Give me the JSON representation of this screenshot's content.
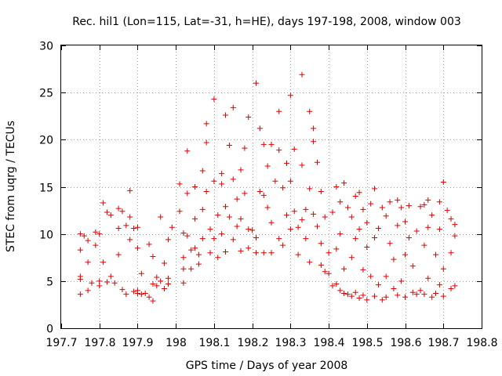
{
  "chart_data": {
    "type": "scatter",
    "title": "Rec. hil1 (Lon=115, Lat=-31, h=HE), days 197-198, 2008, window 003",
    "xlabel": "GPS time / Days of year 2008",
    "ylabel": "STEC from uqrg / TECUs",
    "xlim": [
      197.7,
      198.8
    ],
    "ylim": [
      0,
      30
    ],
    "xticks": [
      197.7,
      197.8,
      197.9,
      198.0,
      198.1,
      198.2,
      198.3,
      198.4,
      198.5,
      198.6,
      198.7,
      198.8
    ],
    "xtick_labels": [
      "197.7",
      "197.8",
      "197.9",
      "198",
      "198.1",
      "198.2",
      "198.3",
      "198.4",
      "198.5",
      "198.6",
      "198.7",
      "198.8"
    ],
    "yticks": [
      0,
      5,
      10,
      15,
      20,
      25,
      30
    ],
    "ytick_labels": [
      "0",
      "5",
      "10",
      "15",
      "20",
      "25",
      "30"
    ],
    "grid": true,
    "marker": "plus",
    "color": "#e00000",
    "series": [
      {
        "points": [
          [
            197.75,
            10.0
          ],
          [
            197.76,
            9.8
          ],
          [
            197.75,
            8.3
          ],
          [
            197.77,
            7.0
          ],
          [
            197.75,
            5.5
          ],
          [
            197.75,
            5.2
          ],
          [
            197.75,
            3.6
          ],
          [
            197.77,
            4.0
          ],
          [
            197.78,
            4.8
          ],
          [
            197.77,
            9.3
          ],
          [
            197.79,
            10.2
          ],
          [
            197.79,
            8.8
          ],
          [
            197.8,
            10.0
          ],
          [
            197.81,
            13.3
          ],
          [
            197.82,
            12.3
          ],
          [
            197.8,
            4.5
          ],
          [
            197.8,
            5.0
          ],
          [
            197.81,
            7.0
          ],
          [
            197.82,
            4.9
          ],
          [
            197.83,
            12.0
          ],
          [
            197.83,
            5.5
          ],
          [
            197.84,
            4.8
          ],
          [
            197.85,
            12.7
          ],
          [
            197.85,
            10.6
          ],
          [
            197.86,
            12.4
          ],
          [
            197.85,
            7.8
          ],
          [
            197.86,
            4.1
          ],
          [
            197.87,
            3.6
          ],
          [
            197.87,
            10.9
          ],
          [
            197.88,
            14.6
          ],
          [
            197.88,
            11.8
          ],
          [
            197.88,
            9.4
          ],
          [
            197.89,
            10.6
          ],
          [
            197.89,
            3.9
          ],
          [
            197.9,
            4.0
          ],
          [
            197.9,
            3.7
          ],
          [
            197.9,
            8.5
          ],
          [
            197.9,
            10.7
          ],
          [
            197.91,
            3.6
          ],
          [
            197.92,
            3.7
          ],
          [
            197.91,
            5.8
          ],
          [
            197.93,
            3.3
          ],
          [
            197.93,
            8.9
          ],
          [
            197.94,
            2.9
          ],
          [
            197.94,
            7.6
          ],
          [
            197.94,
            4.7
          ],
          [
            197.95,
            5.4
          ],
          [
            197.95,
            4.5
          ],
          [
            197.96,
            11.8
          ],
          [
            197.96,
            5.0
          ],
          [
            197.97,
            4.2
          ],
          [
            197.97,
            6.9
          ],
          [
            197.98,
            9.4
          ],
          [
            197.98,
            5.3
          ],
          [
            197.98,
            4.7
          ],
          [
            197.99,
            10.7
          ],
          [
            198.01,
            15.3
          ],
          [
            198.01,
            12.4
          ],
          [
            198.02,
            10.1
          ],
          [
            198.02,
            7.5
          ],
          [
            198.02,
            6.3
          ],
          [
            198.02,
            4.8
          ],
          [
            198.03,
            18.8
          ],
          [
            198.03,
            14.3
          ],
          [
            198.03,
            9.8
          ],
          [
            198.04,
            8.3
          ],
          [
            198.04,
            6.3
          ],
          [
            198.05,
            15.0
          ],
          [
            198.05,
            11.6
          ],
          [
            198.05,
            8.5
          ],
          [
            198.06,
            7.8
          ],
          [
            198.06,
            6.8
          ],
          [
            198.07,
            16.7
          ],
          [
            198.07,
            12.6
          ],
          [
            198.07,
            9.5
          ],
          [
            198.08,
            21.7
          ],
          [
            198.08,
            19.7
          ],
          [
            198.08,
            14.5
          ],
          [
            198.09,
            10.5
          ],
          [
            198.09,
            8.0
          ],
          [
            198.1,
            24.3
          ],
          [
            198.1,
            15.6
          ],
          [
            198.1,
            9.5
          ],
          [
            198.11,
            7.5
          ],
          [
            198.11,
            12.0
          ],
          [
            198.12,
            16.4
          ],
          [
            198.12,
            15.3
          ],
          [
            198.12,
            10.0
          ],
          [
            198.13,
            22.6
          ],
          [
            198.13,
            12.9
          ],
          [
            198.13,
            8.1
          ],
          [
            198.14,
            19.4
          ],
          [
            198.14,
            11.8
          ],
          [
            198.15,
            23.4
          ],
          [
            198.15,
            15.8
          ],
          [
            198.15,
            9.4
          ],
          [
            198.16,
            13.7
          ],
          [
            198.16,
            10.8
          ],
          [
            198.17,
            16.8
          ],
          [
            198.17,
            11.6
          ],
          [
            198.17,
            8.2
          ],
          [
            198.18,
            19.1
          ],
          [
            198.18,
            14.3
          ],
          [
            198.19,
            22.4
          ],
          [
            198.19,
            10.5
          ],
          [
            198.19,
            8.5
          ],
          [
            198.2,
            10.4
          ],
          [
            198.21,
            26.0
          ],
          [
            198.21,
            9.6
          ],
          [
            198.21,
            8.0
          ],
          [
            198.22,
            21.2
          ],
          [
            198.22,
            14.5
          ],
          [
            198.23,
            19.5
          ],
          [
            198.23,
            14.1
          ],
          [
            198.23,
            8.0
          ],
          [
            198.24,
            17.2
          ],
          [
            198.24,
            12.8
          ],
          [
            198.25,
            19.5
          ],
          [
            198.25,
            11.2
          ],
          [
            198.25,
            8.0
          ],
          [
            198.26,
            15.6
          ],
          [
            198.27,
            23.0
          ],
          [
            198.27,
            18.9
          ],
          [
            198.27,
            9.5
          ],
          [
            198.28,
            14.9
          ],
          [
            198.28,
            8.8
          ],
          [
            198.29,
            17.5
          ],
          [
            198.29,
            12.0
          ],
          [
            198.3,
            24.7
          ],
          [
            198.3,
            15.6
          ],
          [
            198.3,
            10.5
          ],
          [
            198.31,
            19.0
          ],
          [
            198.31,
            12.4
          ],
          [
            198.32,
            7.8
          ],
          [
            198.32,
            10.7
          ],
          [
            198.33,
            26.9
          ],
          [
            198.33,
            17.3
          ],
          [
            198.33,
            11.5
          ],
          [
            198.34,
            12.6
          ],
          [
            198.34,
            9.5
          ],
          [
            198.35,
            23.0
          ],
          [
            198.35,
            14.8
          ],
          [
            198.35,
            7.0
          ],
          [
            198.36,
            21.2
          ],
          [
            198.36,
            19.8
          ],
          [
            198.36,
            12.1
          ],
          [
            198.37,
            17.6
          ],
          [
            198.37,
            10.8
          ],
          [
            198.38,
            14.5
          ],
          [
            198.38,
            9.0
          ],
          [
            198.38,
            6.7
          ],
          [
            198.39,
            11.8
          ],
          [
            198.39,
            6.0
          ],
          [
            198.4,
            8.0
          ],
          [
            198.4,
            5.8
          ],
          [
            198.41,
            12.3
          ],
          [
            198.41,
            4.5
          ],
          [
            198.42,
            15.0
          ],
          [
            198.42,
            8.4
          ],
          [
            198.42,
            4.7
          ],
          [
            198.43,
            13.4
          ],
          [
            198.43,
            10.0
          ],
          [
            198.43,
            4.0
          ],
          [
            198.44,
            15.4
          ],
          [
            198.44,
            6.3
          ],
          [
            198.44,
            3.7
          ],
          [
            198.45,
            12.8
          ],
          [
            198.45,
            3.6
          ],
          [
            198.46,
            11.8
          ],
          [
            198.46,
            7.5
          ],
          [
            198.46,
            3.4
          ],
          [
            198.47,
            14.0
          ],
          [
            198.47,
            9.5
          ],
          [
            198.47,
            3.8
          ],
          [
            198.48,
            14.4
          ],
          [
            198.48,
            10.5
          ],
          [
            198.48,
            3.2
          ],
          [
            198.49,
            12.6
          ],
          [
            198.49,
            6.2
          ],
          [
            198.49,
            3.5
          ],
          [
            198.5,
            11.2
          ],
          [
            198.5,
            8.6
          ],
          [
            198.5,
            3.0
          ],
          [
            198.51,
            13.2
          ],
          [
            198.51,
            5.5
          ],
          [
            198.52,
            14.8
          ],
          [
            198.52,
            9.6
          ],
          [
            198.52,
            3.4
          ],
          [
            198.53,
            10.6
          ],
          [
            198.53,
            4.6
          ],
          [
            198.54,
            12.8
          ],
          [
            198.54,
            3.0
          ],
          [
            198.55,
            11.9
          ],
          [
            198.55,
            5.5
          ],
          [
            198.55,
            3.3
          ],
          [
            198.56,
            13.4
          ],
          [
            198.56,
            9.0
          ],
          [
            198.57,
            7.3
          ],
          [
            198.57,
            4.2
          ],
          [
            198.58,
            13.6
          ],
          [
            198.58,
            10.9
          ],
          [
            198.58,
            3.5
          ],
          [
            198.59,
            12.8
          ],
          [
            198.59,
            5.0
          ],
          [
            198.6,
            11.3
          ],
          [
            198.6,
            7.8
          ],
          [
            198.6,
            3.3
          ],
          [
            198.61,
            13.0
          ],
          [
            198.61,
            9.6
          ],
          [
            198.62,
            3.8
          ],
          [
            198.62,
            6.6
          ],
          [
            198.63,
            10.3
          ],
          [
            198.63,
            3.6
          ],
          [
            198.64,
            12.9
          ],
          [
            198.64,
            4.0
          ],
          [
            198.65,
            13.1
          ],
          [
            198.65,
            8.8
          ],
          [
            198.65,
            3.6
          ],
          [
            198.66,
            13.6
          ],
          [
            198.66,
            10.7
          ],
          [
            198.66,
            5.3
          ],
          [
            198.67,
            12.0
          ],
          [
            198.67,
            3.3
          ],
          [
            198.68,
            7.8
          ],
          [
            198.68,
            3.7
          ],
          [
            198.69,
            13.4
          ],
          [
            198.69,
            10.5
          ],
          [
            198.69,
            4.6
          ],
          [
            198.7,
            15.5
          ],
          [
            198.7,
            6.3
          ],
          [
            198.7,
            3.4
          ],
          [
            198.71,
            12.5
          ],
          [
            198.72,
            11.6
          ],
          [
            198.72,
            8.0
          ],
          [
            198.72,
            4.2
          ],
          [
            198.73,
            11.0
          ],
          [
            198.73,
            9.8
          ],
          [
            198.73,
            4.5
          ]
        ]
      }
    ]
  }
}
